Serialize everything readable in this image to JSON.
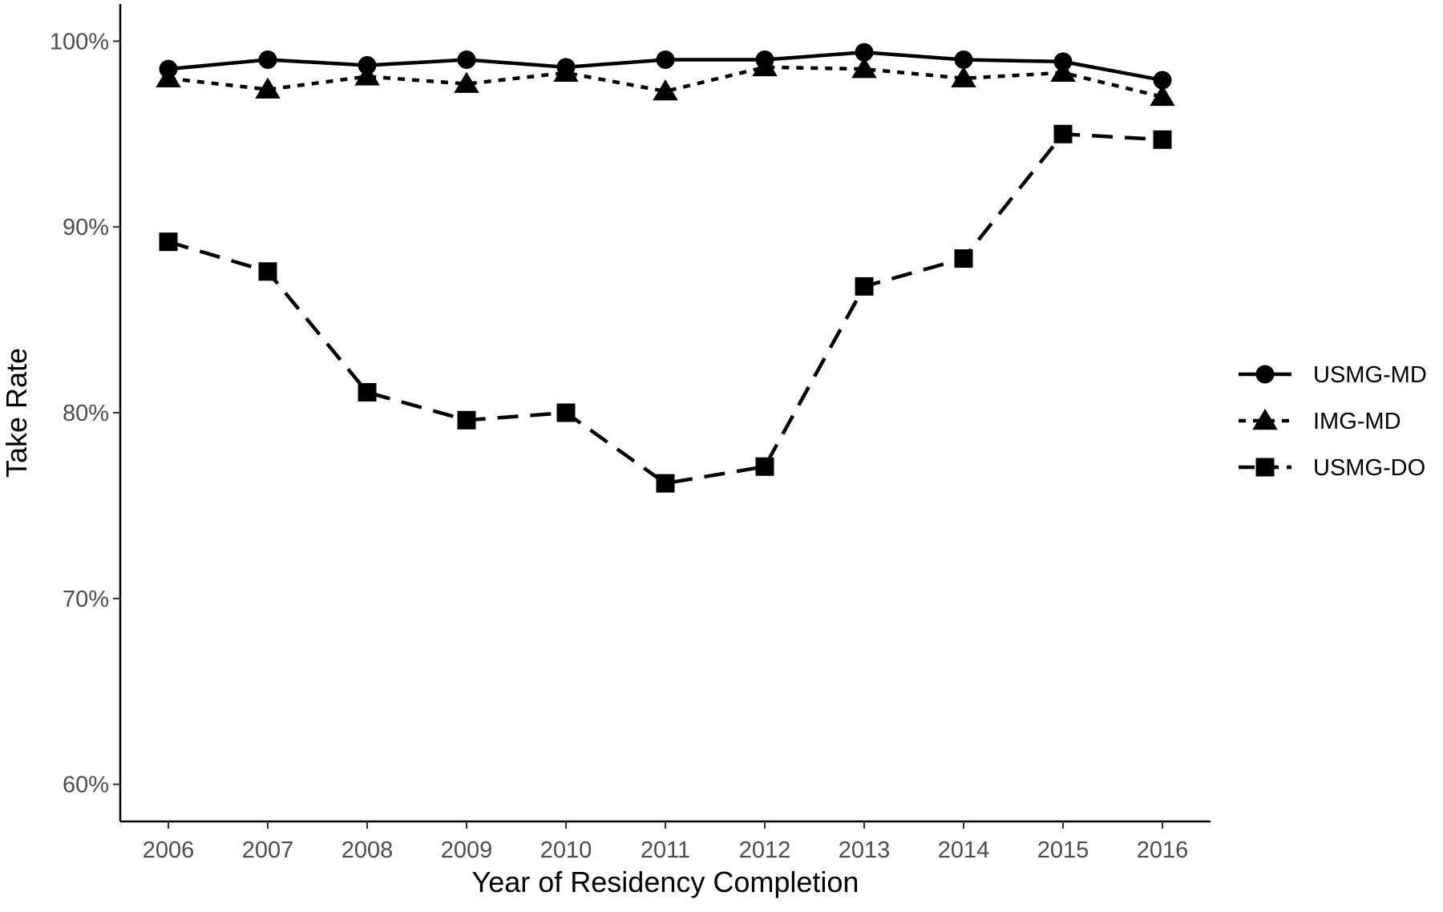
{
  "chart_data": {
    "type": "line",
    "title": "",
    "xlabel": "Year of Residency Completion",
    "ylabel": "Take Rate",
    "x": [
      2006,
      2007,
      2008,
      2009,
      2010,
      2011,
      2012,
      2013,
      2014,
      2015,
      2016
    ],
    "x_tick_labels": [
      "2006",
      "2007",
      "2008",
      "2009",
      "2010",
      "2011",
      "2012",
      "2013",
      "2014",
      "2015",
      "2016"
    ],
    "ylim": [
      58,
      102
    ],
    "y_ticks": [
      60,
      70,
      80,
      90,
      100
    ],
    "y_tick_labels": [
      "60%",
      "70%",
      "80%",
      "90%",
      "100%"
    ],
    "grid": false,
    "legend_position": "right",
    "series": [
      {
        "name": "USMG-MD",
        "line_style": "solid",
        "marker": "circle",
        "color": "#000000",
        "values": [
          98.5,
          99.0,
          98.7,
          99.0,
          98.6,
          99.0,
          99.0,
          99.4,
          99.0,
          98.9,
          97.9
        ]
      },
      {
        "name": "IMG-MD",
        "line_style": "dotted",
        "marker": "triangle",
        "color": "#000000",
        "values": [
          98.0,
          97.4,
          98.1,
          97.7,
          98.3,
          97.3,
          98.6,
          98.5,
          98.0,
          98.3,
          97.0
        ]
      },
      {
        "name": "USMG-DO",
        "line_style": "dashed",
        "marker": "square",
        "color": "#000000",
        "values": [
          89.2,
          87.6,
          81.1,
          79.6,
          80.0,
          76.2,
          77.1,
          86.8,
          88.3,
          95.0,
          94.7
        ]
      }
    ]
  }
}
